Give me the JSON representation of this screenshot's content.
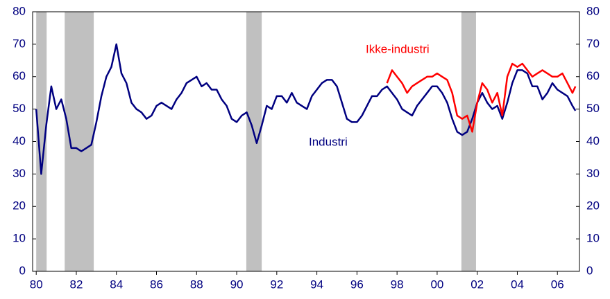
{
  "chart_data": {
    "type": "line",
    "x": [
      1980,
      1980.25,
      1980.5,
      1980.75,
      1981,
      1981.25,
      1981.5,
      1981.75,
      1982,
      1982.25,
      1982.5,
      1982.75,
      1983,
      1983.25,
      1983.5,
      1983.75,
      1984,
      1984.25,
      1984.5,
      1984.75,
      1985,
      1985.25,
      1985.5,
      1985.75,
      1986,
      1986.25,
      1986.5,
      1986.75,
      1987,
      1987.25,
      1987.5,
      1987.75,
      1988,
      1988.25,
      1988.5,
      1988.75,
      1989,
      1989.25,
      1989.5,
      1989.75,
      1990,
      1990.25,
      1990.5,
      1990.75,
      1991,
      1991.25,
      1991.5,
      1991.75,
      1992,
      1992.25,
      1992.5,
      1992.75,
      1993,
      1993.25,
      1993.5,
      1993.75,
      1994,
      1994.25,
      1994.5,
      1994.75,
      1995,
      1995.25,
      1995.5,
      1995.75,
      1996,
      1996.25,
      1996.5,
      1996.75,
      1997,
      1997.25,
      1997.5,
      1997.75,
      1998,
      1998.25,
      1998.5,
      1998.75,
      1999,
      1999.25,
      1999.5,
      1999.75,
      2000,
      2000.25,
      2000.5,
      2000.75,
      2001,
      2001.25,
      2001.5,
      2001.75,
      2002,
      2002.25,
      2002.5,
      2002.75,
      2003,
      2003.25,
      2003.5,
      2003.75,
      2004,
      2004.25,
      2004.5,
      2004.75,
      2005,
      2005.25,
      2005.5,
      2005.75,
      2006,
      2006.25,
      2006.5,
      2006.75,
      2006.9
    ],
    "series": [
      {
        "name": "Industri",
        "color": "#000080",
        "values": [
          50,
          30,
          45,
          57,
          50,
          53,
          47,
          38,
          38,
          37,
          38,
          39,
          46,
          54,
          60,
          63,
          70,
          61,
          58,
          52,
          50,
          49,
          47,
          48,
          51,
          52,
          51,
          50,
          53,
          55,
          58,
          59,
          60,
          57,
          58,
          56,
          56,
          53,
          51,
          47,
          46,
          48,
          49,
          45,
          39.5,
          45,
          51,
          50,
          54,
          54,
          52,
          55,
          52,
          51,
          50,
          54,
          56,
          58,
          59,
          59,
          57,
          52,
          47,
          46,
          46,
          48,
          51,
          54,
          54,
          56,
          57,
          55,
          53,
          50,
          49,
          48,
          51,
          53,
          55,
          57,
          57,
          55,
          52,
          47,
          43,
          42,
          43,
          47,
          52,
          55,
          52,
          50,
          51,
          47,
          52,
          58,
          62,
          62,
          61,
          57,
          57,
          53,
          55,
          58,
          56,
          55,
          54,
          51,
          49.5
        ]
      },
      {
        "name": "Ikke-industri",
        "color": "#ff0000",
        "values": [
          null,
          null,
          null,
          null,
          null,
          null,
          null,
          null,
          null,
          null,
          null,
          null,
          null,
          null,
          null,
          null,
          null,
          null,
          null,
          null,
          null,
          null,
          null,
          null,
          null,
          null,
          null,
          null,
          null,
          null,
          null,
          null,
          null,
          null,
          null,
          null,
          null,
          null,
          null,
          null,
          null,
          null,
          null,
          null,
          null,
          null,
          null,
          null,
          null,
          null,
          null,
          null,
          null,
          null,
          null,
          null,
          null,
          null,
          null,
          null,
          null,
          null,
          null,
          null,
          null,
          null,
          null,
          null,
          null,
          null,
          58,
          62,
          60,
          58,
          55,
          57,
          58,
          59,
          60,
          60,
          61,
          60,
          59,
          55,
          48,
          47,
          48,
          43,
          52,
          58,
          56,
          52,
          55,
          48,
          60,
          64,
          63,
          64,
          62,
          60,
          61,
          62,
          61,
          60,
          60,
          61,
          58,
          55,
          57
        ]
      }
    ],
    "shaded_periods": [
      [
        1980,
        1980.52
      ],
      [
        1981.42,
        1982.87
      ],
      [
        1990.48,
        1991.25
      ],
      [
        2001.21,
        2001.94
      ]
    ],
    "shade_color": "#c0c0c0",
    "xlim": [
      1979.82,
      2007.1
    ],
    "xticks": [
      {
        "value": 1980,
        "label": "80"
      },
      {
        "value": 1982,
        "label": "82"
      },
      {
        "value": 1984,
        "label": "84"
      },
      {
        "value": 1986,
        "label": "86"
      },
      {
        "value": 1988,
        "label": "88"
      },
      {
        "value": 1990,
        "label": "90"
      },
      {
        "value": 1992,
        "label": "92"
      },
      {
        "value": 1994,
        "label": "94"
      },
      {
        "value": 1996,
        "label": "96"
      },
      {
        "value": 1998,
        "label": "98"
      },
      {
        "value": 2000,
        "label": "00"
      },
      {
        "value": 2002,
        "label": "02"
      },
      {
        "value": 2004,
        "label": "04"
      },
      {
        "value": 2006,
        "label": "06"
      }
    ],
    "ylim": [
      0,
      80
    ],
    "yticks": [
      0,
      10,
      20,
      30,
      40,
      50,
      60,
      70,
      80
    ],
    "y2lim": [
      0,
      80
    ],
    "y2ticks": [
      0,
      10,
      20,
      30,
      40,
      50,
      60,
      70,
      80
    ]
  }
}
